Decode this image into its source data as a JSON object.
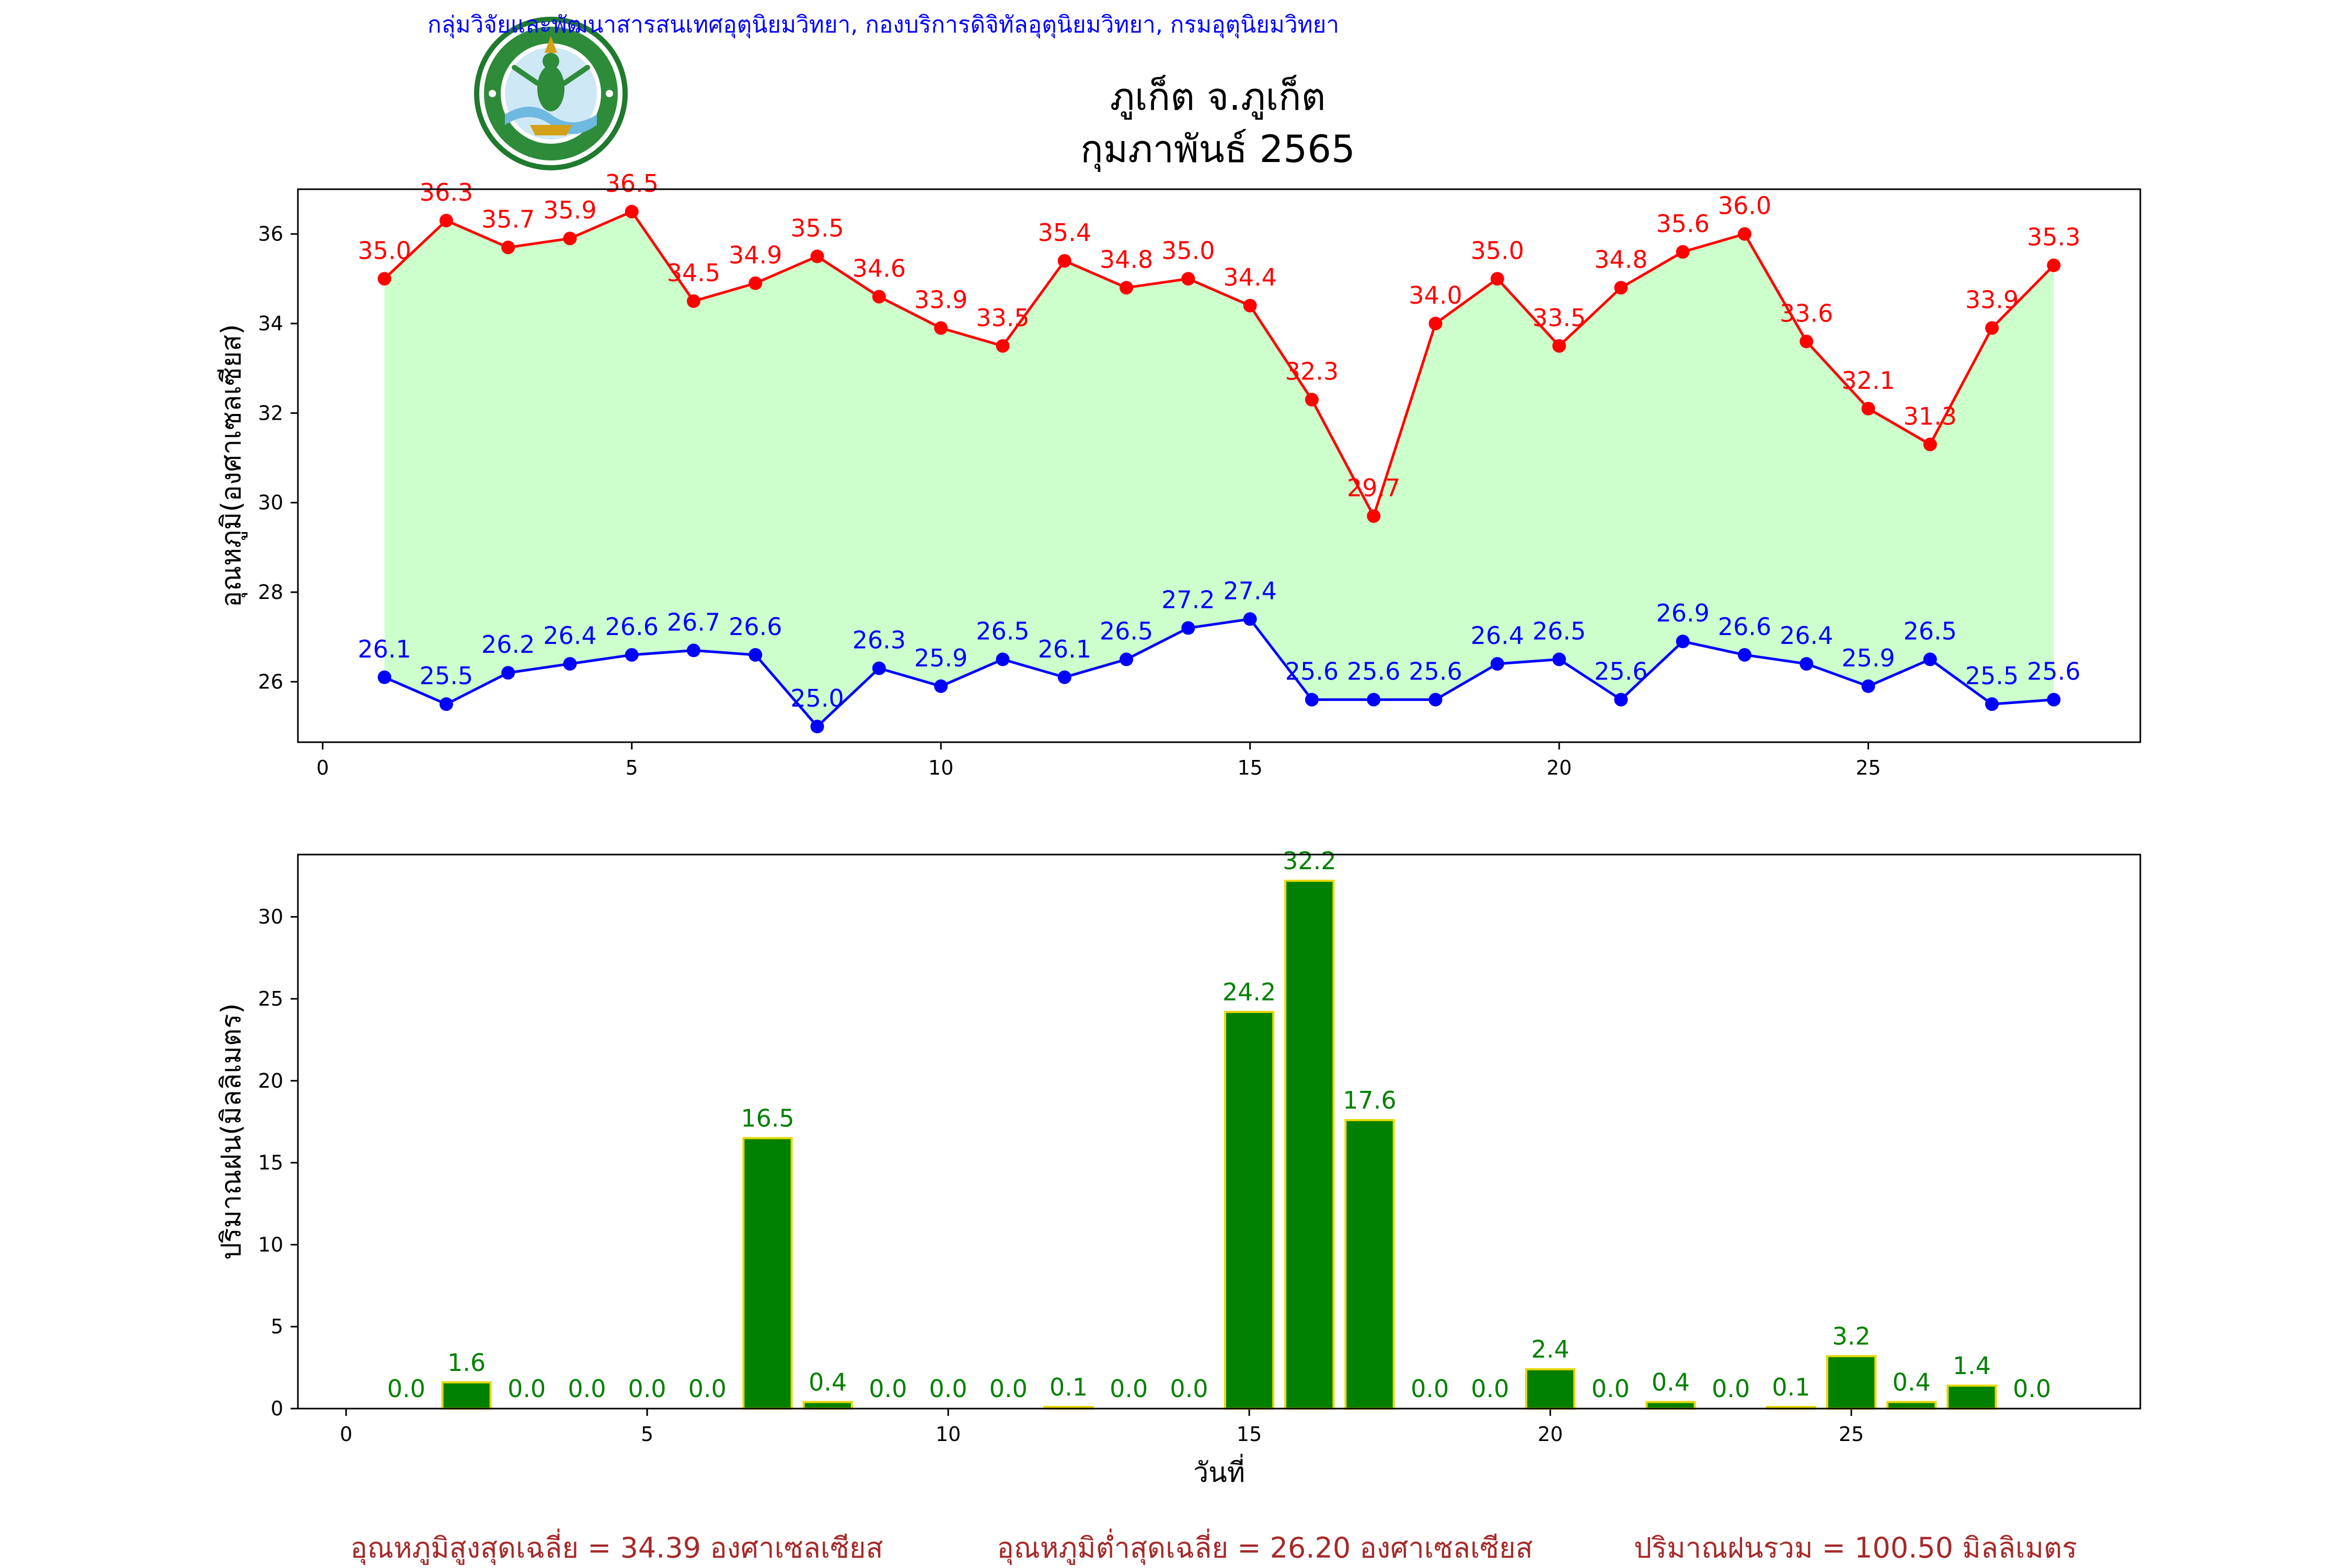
{
  "header": {
    "org_line": "กลุ่มวิจัยและพัฒนาสารสนเทศอุตุนิยมวิทยา, กองบริการดิจิทัลอุตุนิยมวิทยา, กรมอุตุนิยมวิทยา",
    "station": "ภูเก็ต จ.ภูเก็ต",
    "period": "กุมภาพันธ์ 2565",
    "logo_text_top": "กรมอุตุนิยมวิทยา",
    "logo_text_bottom": "METEOROLOGICAL DEPARTMENT"
  },
  "footer": {
    "avg_max": "อุณหภูมิสูงสุดเฉลี่ย = 34.39 องศาเซลเซียส",
    "avg_min": "อุณหภูมิต่ำสุดเฉลี่ย = 26.20 องศาเซลเซียส",
    "total_rain": "ปริมาณฝนรวม = 100.50 มิลลิเมตร"
  },
  "colors": {
    "max_line": "#ff0000",
    "min_line": "#0000ff",
    "fill": "#ccffcc",
    "bar": "#008000",
    "bar_edge": "#e6d800",
    "bar_label": "#008000",
    "header": "#0000ff",
    "footer": "#a52a2a"
  },
  "chart_data": [
    {
      "type": "line",
      "ylabel": "อุณหภูมิ(องศาเซลเซียส)",
      "xlim": [
        -0.4,
        29.4
      ],
      "ylim": [
        24.65,
        37.0
      ],
      "xticks": [
        0,
        5,
        10,
        15,
        20,
        25
      ],
      "yticks": [
        26,
        28,
        30,
        32,
        34,
        36
      ],
      "x": [
        1,
        2,
        3,
        4,
        5,
        6,
        7,
        8,
        9,
        10,
        11,
        12,
        13,
        14,
        15,
        16,
        17,
        18,
        19,
        20,
        21,
        22,
        23,
        24,
        25,
        26,
        27,
        28
      ],
      "series": [
        {
          "key": "max",
          "values": [
            35.0,
            36.3,
            35.7,
            35.9,
            36.5,
            34.5,
            34.9,
            35.5,
            34.6,
            33.9,
            33.5,
            35.4,
            34.8,
            35.0,
            34.4,
            32.3,
            29.7,
            34.0,
            35.0,
            33.5,
            34.8,
            35.6,
            36.0,
            33.6,
            32.1,
            31.3,
            33.9,
            35.3
          ]
        },
        {
          "key": "min",
          "values": [
            26.1,
            25.5,
            26.2,
            26.4,
            26.6,
            26.7,
            26.6,
            25.0,
            26.3,
            25.9,
            26.5,
            26.1,
            26.5,
            27.2,
            27.4,
            25.6,
            25.6,
            25.6,
            26.4,
            26.5,
            25.6,
            26.9,
            26.6,
            26.4,
            25.9,
            26.5,
            25.5,
            25.6
          ]
        }
      ],
      "labels": {
        "max": [
          "35.0",
          "36.3",
          "35.7",
          "35.9",
          "36.5",
          "34.5",
          "34.9",
          "35.5",
          "34.6",
          "33.9",
          "33.5",
          "35.4",
          "34.8",
          "35.0",
          "34.4",
          "32.3",
          "29.7",
          "34.0",
          "35.0",
          "33.5",
          "34.8",
          "35.6",
          "36.0",
          "33.6",
          "32.1",
          "31.3",
          "33.9",
          "35.3"
        ],
        "min": [
          "26.1",
          "25.5",
          "26.2",
          "26.4",
          "26.6",
          "26.7",
          "26.6",
          "25.0",
          "26.3",
          "25.9",
          "26.5",
          "26.1",
          "26.5",
          "27.2",
          "27.4",
          "25.6",
          "25.6",
          "25.6",
          "26.4",
          "26.5",
          "25.6",
          "26.9",
          "26.6",
          "26.4",
          "25.9",
          "26.5",
          "25.5",
          "25.6"
        ]
      }
    },
    {
      "type": "bar",
      "xlabel": "วันที่",
      "ylabel": "ปริมาณฝน(มิลลิเมตร)",
      "xlim": [
        -0.8,
        29.8
      ],
      "ylim": [
        0,
        33.8
      ],
      "xticks": [
        0,
        5,
        10,
        15,
        20,
        25
      ],
      "yticks": [
        0,
        5,
        10,
        15,
        20,
        25,
        30
      ],
      "x": [
        1,
        2,
        3,
        4,
        5,
        6,
        7,
        8,
        9,
        10,
        11,
        12,
        13,
        14,
        15,
        16,
        17,
        18,
        19,
        20,
        21,
        22,
        23,
        24,
        25,
        26,
        27,
        28
      ],
      "values": [
        0.0,
        1.6,
        0.0,
        0.0,
        0.0,
        0.0,
        16.5,
        0.4,
        0.0,
        0.0,
        0.0,
        0.1,
        0.0,
        0.0,
        24.2,
        32.2,
        17.6,
        0.0,
        0.0,
        2.4,
        0.0,
        0.4,
        0.0,
        0.1,
        3.2,
        0.4,
        1.4,
        0.0
      ],
      "labels": [
        "0.0",
        "1.6",
        "0.0",
        "0.0",
        "0.0",
        "0.0",
        "16.5",
        "0.4",
        "0.0",
        "0.0",
        "0.0",
        "0.1",
        "0.0",
        "0.0",
        "24.2",
        "32.2",
        "17.6",
        "0.0",
        "0.0",
        "2.4",
        "0.0",
        "0.4",
        "0.0",
        "0.1",
        "3.2",
        "0.4",
        "1.4",
        "0.0"
      ]
    }
  ]
}
